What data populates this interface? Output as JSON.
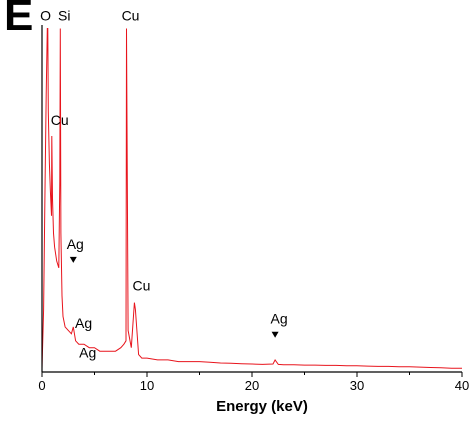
{
  "panel_label": "E",
  "chart_data": {
    "type": "line",
    "title": "",
    "xlabel": "Energy (keV)",
    "ylabel": "",
    "xlim": [
      0,
      40
    ],
    "ylim": [
      0,
      100
    ],
    "xticks": [
      "0",
      "10",
      "20",
      "30",
      "40"
    ],
    "grid": false,
    "series_color": "#e8141c",
    "series": [
      {
        "x": [
          0,
          0.15,
          0.3,
          0.4,
          0.5,
          0.55,
          0.6,
          0.7,
          0.8,
          0.9,
          0.93,
          1.0,
          1.1,
          1.2,
          1.4,
          1.6,
          1.7,
          1.74,
          1.8,
          1.9,
          2.0,
          2.2,
          2.5,
          2.8,
          2.98,
          3.2,
          3.5,
          4.0,
          4.5,
          5.0,
          5.5,
          6.0,
          6.5,
          7.0,
          7.5,
          7.8,
          8.0,
          8.05,
          8.2,
          8.5,
          8.8,
          8.9,
          9.2,
          9.5,
          10,
          11,
          12,
          13,
          14,
          15,
          16,
          17,
          18,
          19,
          20,
          21,
          22,
          22.2,
          22.5,
          23,
          24,
          25,
          26,
          27,
          28,
          29,
          30,
          31,
          32,
          33,
          34,
          35,
          36,
          37,
          38,
          39,
          40
        ],
        "y": [
          1,
          18,
          55,
          80,
          99,
          99,
          75,
          60,
          52,
          45,
          68,
          50,
          40,
          36,
          32,
          30,
          55,
          99,
          40,
          22,
          16,
          13,
          12,
          11,
          13,
          9,
          8,
          8,
          7,
          7,
          6,
          6,
          6,
          6,
          7,
          8,
          9,
          99,
          12,
          7,
          20,
          18,
          5,
          4,
          4,
          3.5,
          3.5,
          3,
          3,
          3,
          2.8,
          2.6,
          2.5,
          2.4,
          2.3,
          2.2,
          2.3,
          3.5,
          2.2,
          2.1,
          2.1,
          2,
          2,
          1.9,
          1.9,
          1.8,
          1.8,
          1.7,
          1.6,
          1.6,
          1.5,
          1.5,
          1.4,
          1.3,
          1.2,
          1.1,
          1.1
        ]
      }
    ],
    "annotations": [
      {
        "text": "O",
        "x": 0.53,
        "y": 99,
        "marker": false
      },
      {
        "text": "Si",
        "x": 1.74,
        "y": 99,
        "marker": false
      },
      {
        "text": "Cu",
        "x": 8.05,
        "y": 99,
        "marker": false
      },
      {
        "text": "Cu",
        "x": 0.93,
        "y": 68,
        "marker": false
      },
      {
        "text": "Ag",
        "x": 2.98,
        "y": 28,
        "marker": true
      },
      {
        "text": "Ag",
        "x": 3.2,
        "y": 15,
        "marker": false
      },
      {
        "text": "Ag",
        "x": 3.4,
        "y": 10,
        "marker": false
      },
      {
        "text": "Cu",
        "x": 8.9,
        "y": 20,
        "marker": false
      },
      {
        "text": "Ag",
        "x": 22.2,
        "y": 7,
        "marker": true
      }
    ]
  }
}
